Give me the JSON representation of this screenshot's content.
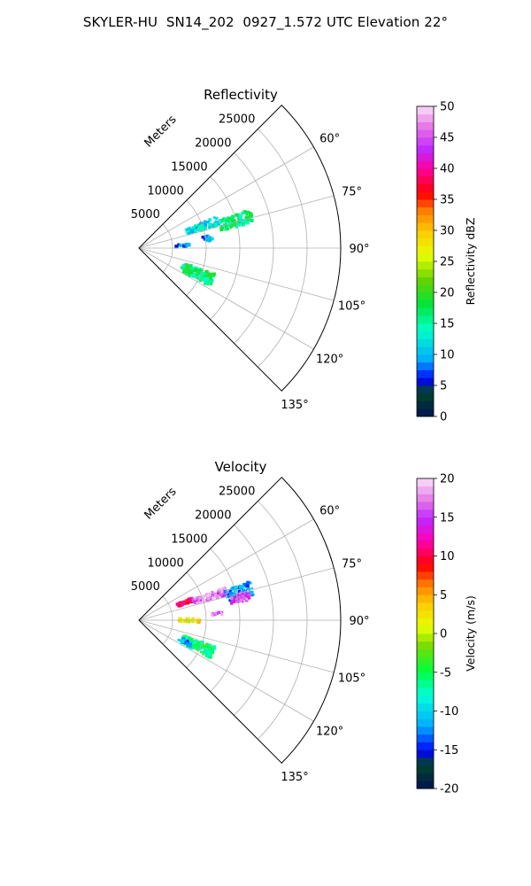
{
  "figure": {
    "title": "SKYLER-HU  SN14_202  0927_1.572 UTC Elevation 22°"
  },
  "chart_data": [
    {
      "type": "polar-sector",
      "title": "Reflectivity",
      "radial_label": "Meters",
      "radial_ticks": [
        5000,
        10000,
        15000,
        20000,
        25000
      ],
      "radial_tick_labels": [
        "5000",
        "10000",
        "15000",
        "20000",
        "25000"
      ],
      "r_max": 30000,
      "angle_range": [
        45,
        135
      ],
      "angle_ticks": [
        60,
        75,
        90,
        105,
        120,
        135
      ],
      "angle_tick_labels": [
        "60°",
        "75°",
        "90°",
        "105°",
        "120°",
        "135°"
      ],
      "grid": true,
      "colorbar": {
        "label": "Reflectivity dBZ",
        "min": 0,
        "max": 50,
        "ticks": [
          0,
          5,
          10,
          15,
          20,
          25,
          30,
          35,
          40,
          45,
          50
        ],
        "tick_labels": [
          "0",
          "5",
          "10",
          "15",
          "20",
          "25",
          "30",
          "35",
          "40",
          "45",
          "50"
        ],
        "palette": "pyart_NWSRef-like"
      },
      "echo_regions": [
        {
          "az_range": [
            68,
            74
          ],
          "r_range": [
            7500,
            12500
          ],
          "value": 12
        },
        {
          "az_range": [
            71,
            78
          ],
          "r_range": [
            12500,
            17500
          ],
          "value": 16
        },
        {
          "az_range": [
            80,
            84
          ],
          "r_range": [
            9500,
            11000
          ],
          "value": 9
        },
        {
          "az_range": [
            85,
            88
          ],
          "r_range": [
            5500,
            7500
          ],
          "value": 8
        },
        {
          "az_range": [
            109,
            118
          ],
          "r_range": [
            7000,
            12000
          ],
          "value": 17
        }
      ]
    },
    {
      "type": "polar-sector",
      "title": "Velocity",
      "radial_label": "Meters",
      "radial_ticks": [
        5000,
        10000,
        15000,
        20000,
        25000
      ],
      "radial_tick_labels": [
        "5000",
        "10000",
        "15000",
        "20000",
        "25000"
      ],
      "r_max": 30000,
      "angle_range": [
        45,
        135
      ],
      "angle_ticks": [
        60,
        75,
        90,
        105,
        120,
        135
      ],
      "angle_tick_labels": [
        "60°",
        "75°",
        "90°",
        "105°",
        "120°",
        "135°"
      ],
      "grid": true,
      "colorbar": {
        "label": "Velocity (m/s)",
        "min": -20,
        "max": 20,
        "ticks": [
          -20,
          -15,
          -10,
          -5,
          0,
          5,
          10,
          15,
          20
        ],
        "tick_labels": [
          "-20",
          "-15",
          "-10",
          "-5",
          "0",
          "5",
          "10",
          "15",
          "20"
        ],
        "palette": "pyart_BuDRd18-like"
      },
      "echo_regions": [
        {
          "az_range": [
            67,
            71
          ],
          "r_range": [
            6000,
            8500
          ],
          "value": 10
        },
        {
          "az_range": [
            69,
            74
          ],
          "r_range": [
            8500,
            14000
          ],
          "value": 17
        },
        {
          "az_range": [
            71,
            78
          ],
          "r_range": [
            13500,
            17500
          ],
          "value": -12
        },
        {
          "az_range": [
            75,
            80
          ],
          "r_range": [
            14000,
            17000
          ],
          "value": 16
        },
        {
          "az_range": [
            84,
            86
          ],
          "r_range": [
            11000,
            12500
          ],
          "value": 17
        },
        {
          "az_range": [
            88,
            92
          ],
          "r_range": [
            6000,
            9000
          ],
          "value": 2
        },
        {
          "az_range": [
            109,
            118
          ],
          "r_range": [
            7000,
            12000
          ],
          "value": -6
        },
        {
          "az_range": [
            113,
            117
          ],
          "r_range": [
            6500,
            8500
          ],
          "value": -12
        }
      ]
    }
  ]
}
